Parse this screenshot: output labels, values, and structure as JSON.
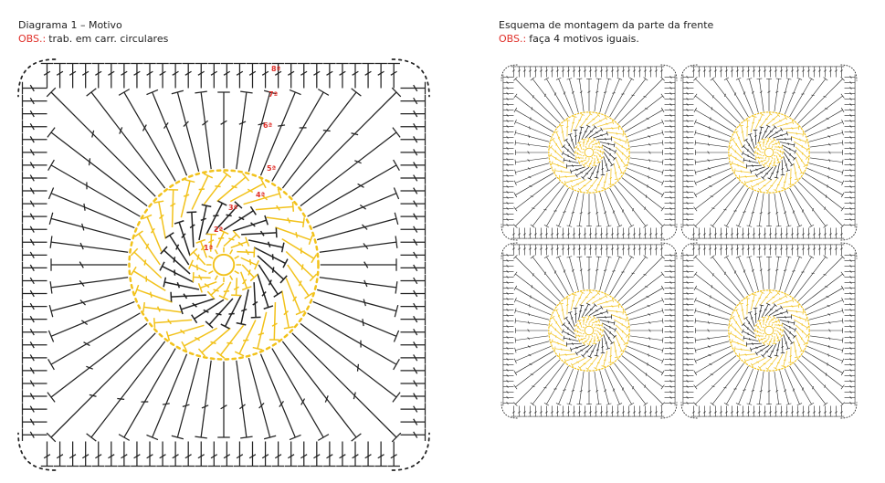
{
  "left": {
    "title": "Diagrama 1 – Motivo",
    "note_label": "OBS.:",
    "note": "trab. em carr. circulares",
    "round_labels": [
      "1ª",
      "2ª",
      "3ª",
      "4ª",
      "5ª",
      "6ª",
      "7ª",
      "8ª"
    ]
  },
  "right": {
    "title": "Esquema de montagem da parte da frente",
    "note_label": "OBS.:",
    "note": "faça 4 motivos iguais."
  }
}
